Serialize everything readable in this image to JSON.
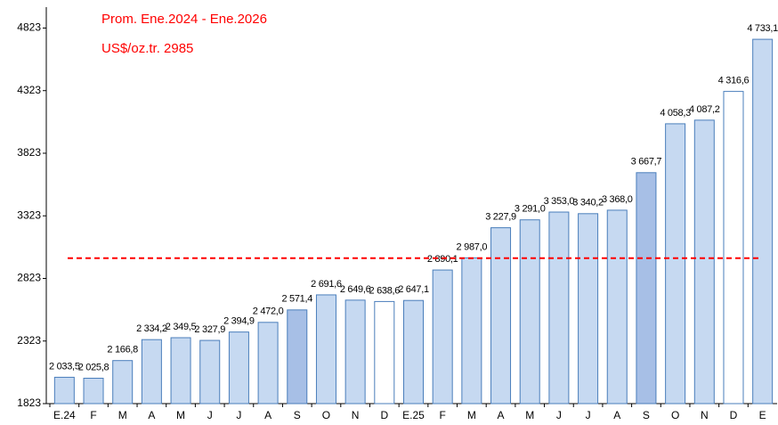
{
  "chart_data": {
    "type": "bar",
    "annotation": "Prom. Ene.2024 - Ene.2026",
    "reference_line": {
      "value": 2985,
      "label": "US$/oz.tr. 2985",
      "color": "#ff0000"
    },
    "categories": [
      "E.24",
      "F",
      "M",
      "A",
      "M",
      "J",
      "J",
      "A",
      "S",
      "O",
      "N",
      "D",
      "E.25",
      "F",
      "M",
      "A",
      "M",
      "J",
      "J",
      "A",
      "S",
      "O",
      "N",
      "D",
      "E"
    ],
    "values": [
      2033.5,
      2025.8,
      2166.8,
      2334.2,
      2349.5,
      2327.9,
      2394.9,
      2472.0,
      2571.4,
      2691.6,
      2649.6,
      2638.6,
      2647.1,
      2890.1,
      2987.0,
      3227.9,
      3291.0,
      3353.0,
      3340.2,
      3368.0,
      3667.7,
      4058.3,
      4087.2,
      4316.6,
      4733.1
    ],
    "value_labels": [
      "2 033,5",
      "2 025,8",
      "2 166,8",
      "2 334,2",
      "2 349,5",
      "2 327,9",
      "2 394,9",
      "2 472,0",
      "2 571,4",
      "2 691,6",
      "2 649,6",
      "2 638,6",
      "2 647,1",
      "2 890,1",
      "2 987,0",
      "3 227,9",
      "3 291,0",
      "3 353,0",
      "3 340,2",
      "3 368,0",
      "3 667,7",
      "4 058,3",
      "4 087,2",
      "4 316,6",
      "4 733,1"
    ],
    "colors": [
      "#c6d9f1",
      "#c6d9f1",
      "#c6d9f1",
      "#c6d9f1",
      "#c6d9f1",
      "#c6d9f1",
      "#c6d9f1",
      "#c6d9f1",
      "#a7bfe6",
      "#c6d9f1",
      "#c6d9f1",
      "#ffffff",
      "#c6d9f1",
      "#c6d9f1",
      "#c6d9f1",
      "#c6d9f1",
      "#c6d9f1",
      "#c6d9f1",
      "#c6d9f1",
      "#c6d9f1",
      "#a7bfe6",
      "#c6d9f1",
      "#c6d9f1",
      "#ffffff",
      "#c6d9f1"
    ],
    "edge_color": "#4a7ebb",
    "ylim": [
      1823,
      4990
    ],
    "yticks": [
      1823,
      2323,
      2823,
      3323,
      3823,
      4323,
      4823
    ],
    "grid": false
  }
}
